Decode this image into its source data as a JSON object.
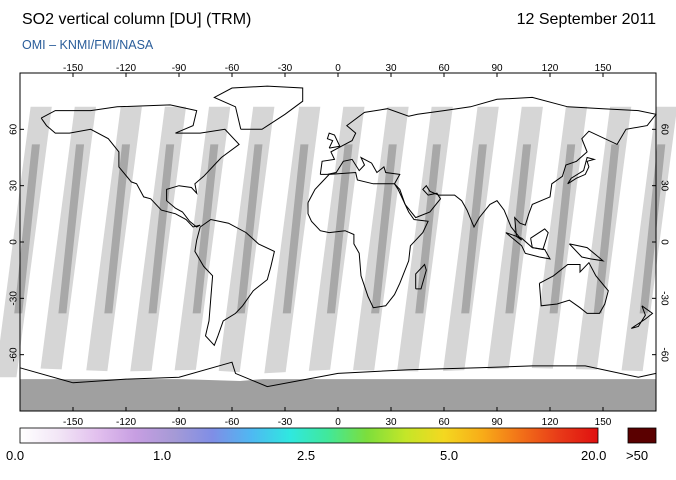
{
  "header": {
    "title": "SO2 vertical column [DU] (TRM)",
    "date": "12 September 2011",
    "source": "OMI  –  KNMI/FMI/NASA"
  },
  "map": {
    "projection": "equirectangular",
    "lon_range": [
      -180,
      180
    ],
    "lat_range": [
      -90,
      90
    ],
    "top_lon_ticks": [
      "-150",
      "-120",
      "-90",
      "-60",
      "-30",
      "0",
      "30",
      "60",
      "90",
      "120",
      "150"
    ],
    "bottom_lon_ticks": [
      "-150",
      "-120",
      "-90",
      "-60",
      "-30",
      "0",
      "30",
      "60",
      "90",
      "120",
      "150"
    ],
    "lat_ticks": [
      "60",
      "30",
      "0",
      "-30",
      "-60"
    ],
    "orbit_swath_colors": [
      "#d2d2d2",
      "#a8a8a8"
    ],
    "polar_fill_color": "#a0a0a0"
  },
  "legend": {
    "colors": [
      "#ffffff",
      "#f2e6f6",
      "#e2c0ee",
      "#c79ee2",
      "#a59ad6",
      "#7f8ee6",
      "#4fb8f2",
      "#2fe8e0",
      "#41e89a",
      "#7cde3c",
      "#c4e628",
      "#f4d820",
      "#f8ac18",
      "#f27018",
      "#e83a18",
      "#e01010"
    ],
    "overflow_color": "#5a0000",
    "labels": [
      "0.0",
      "1.0",
      "2.5",
      "5.0",
      "20.0"
    ],
    "overflow_label": ">50"
  }
}
